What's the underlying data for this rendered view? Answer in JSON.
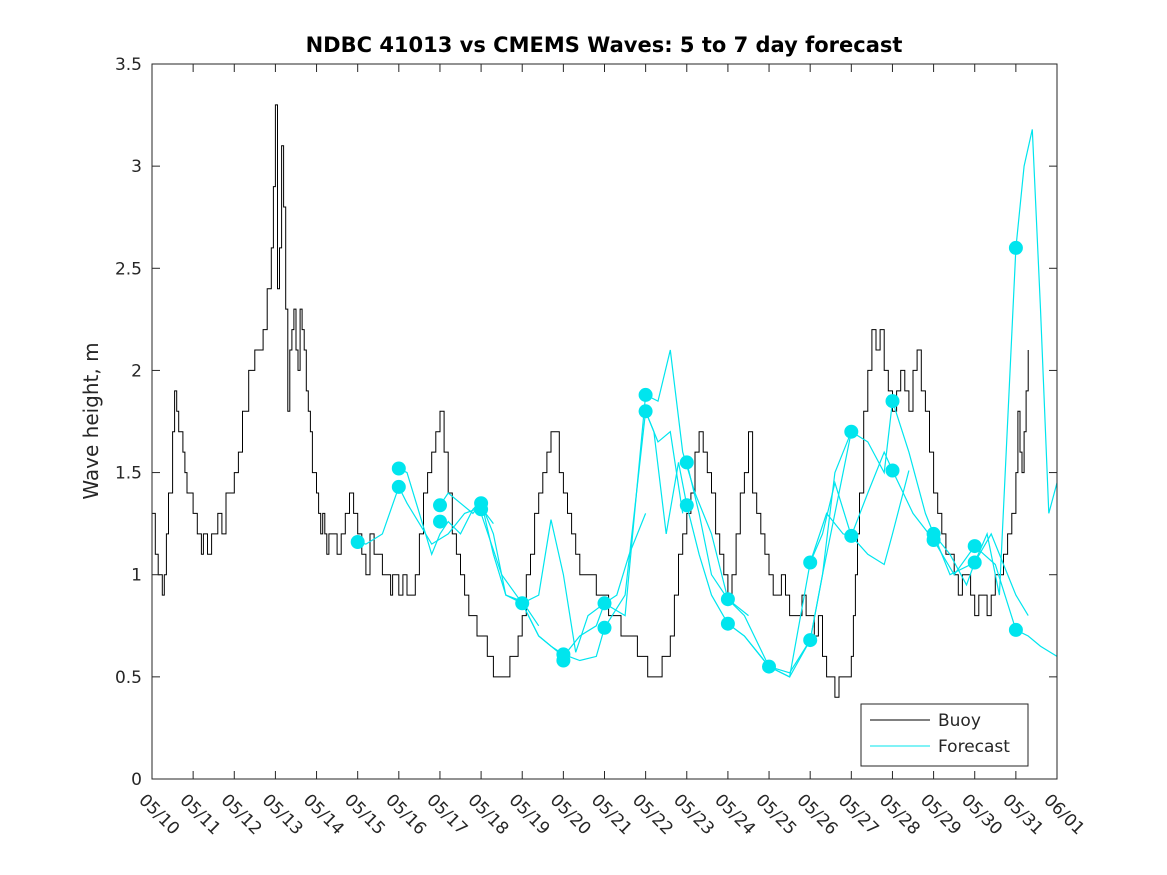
{
  "chart_data": {
    "type": "line",
    "title": "NDBC 41013 vs CMEMS Waves: 5 to 7 day forecast",
    "xlabel": "",
    "ylabel": "Wave height, m",
    "xlim": [
      0,
      22
    ],
    "ylim": [
      0,
      3.5
    ],
    "yticks": [
      0,
      0.5,
      1,
      1.5,
      2,
      2.5,
      3,
      3.5
    ],
    "ytick_labels": [
      "0",
      "0.5",
      "1",
      "1.5",
      "2",
      "2.5",
      "3",
      "3.5"
    ],
    "xtick_labels": [
      "05/10",
      "05/11",
      "05/12",
      "05/13",
      "05/14",
      "05/15",
      "05/16",
      "05/17",
      "05/18",
      "05/19",
      "05/20",
      "05/21",
      "05/22",
      "05/23",
      "05/24",
      "05/25",
      "05/26",
      "05/27",
      "05/28",
      "05/29",
      "05/30",
      "05/31",
      "06/01"
    ],
    "grid": false,
    "legend": {
      "position": "bottom-right",
      "entries": [
        "Buoy",
        "Forecast"
      ]
    },
    "colors": {
      "buoy": "#000000",
      "forecast": "#00e5ee",
      "axis": "#262626"
    },
    "series": [
      {
        "name": "Buoy",
        "style": "step",
        "x": [
          0,
          0.08,
          0.15,
          0.25,
          0.3,
          0.35,
          0.4,
          0.5,
          0.55,
          0.6,
          0.65,
          0.75,
          0.8,
          0.85,
          0.95,
          1.0,
          1.1,
          1.2,
          1.25,
          1.35,
          1.45,
          1.5,
          1.6,
          1.7,
          1.8,
          1.9,
          2.0,
          2.1,
          2.2,
          2.35,
          2.5,
          2.6,
          2.7,
          2.8,
          2.9,
          2.95,
          3.0,
          3.05,
          3.1,
          3.15,
          3.2,
          3.25,
          3.3,
          3.35,
          3.4,
          3.45,
          3.5,
          3.55,
          3.6,
          3.65,
          3.7,
          3.75,
          3.8,
          3.85,
          3.9,
          3.95,
          4.0,
          4.05,
          4.1,
          4.15,
          4.2,
          4.25,
          4.3,
          4.4,
          4.5,
          4.6,
          4.7,
          4.8,
          4.9,
          5.0,
          5.1,
          5.2,
          5.3,
          5.4,
          5.5,
          5.6,
          5.7,
          5.75,
          5.8,
          5.85,
          5.9,
          6.0,
          6.1,
          6.15,
          6.2,
          6.3,
          6.4,
          6.5,
          6.6,
          6.7,
          6.8,
          6.9,
          7.0,
          7.1,
          7.2,
          7.3,
          7.4,
          7.5,
          7.6,
          7.7,
          7.8,
          7.9,
          8.0,
          8.05,
          8.1,
          8.15,
          8.2,
          8.3,
          8.4,
          8.5,
          8.6,
          8.7,
          8.8,
          8.9,
          9.0,
          9.1,
          9.2,
          9.3,
          9.4,
          9.5,
          9.6,
          9.7,
          9.8,
          9.9,
          10.0,
          10.1,
          10.2,
          10.3,
          10.4,
          10.6,
          10.8,
          11.0,
          11.1,
          11.2,
          11.3,
          11.4,
          11.5,
          11.6,
          11.7,
          11.8,
          11.9,
          12.0,
          12.05,
          12.1,
          12.15,
          12.2,
          12.3,
          12.4,
          12.5,
          12.6,
          12.7,
          12.8,
          12.9,
          13.0,
          13.1,
          13.2,
          13.3,
          13.4,
          13.5,
          13.6,
          13.7,
          13.8,
          13.9,
          14.0,
          14.1,
          14.2,
          14.3,
          14.4,
          14.5,
          14.6,
          14.7,
          14.8,
          14.9,
          15.0,
          15.1,
          15.2,
          15.3,
          15.4,
          15.5,
          15.6,
          15.7,
          15.8,
          15.9,
          16.0,
          16.1,
          16.2,
          16.3,
          16.4,
          16.5,
          16.6,
          16.7,
          16.8,
          16.9,
          17.0,
          17.05,
          17.1,
          17.15,
          17.2,
          17.3,
          17.4,
          17.5,
          17.6,
          17.7,
          17.8,
          17.9,
          18.0,
          18.1,
          18.2,
          18.3,
          18.4,
          18.5,
          18.6,
          18.7,
          18.8,
          18.9,
          19.0,
          19.1,
          19.2,
          19.3,
          19.4,
          19.5,
          19.6,
          19.7,
          19.8,
          19.9,
          20.0,
          20.1,
          20.2,
          20.3,
          20.4,
          20.5,
          20.6,
          20.7,
          20.8,
          20.9,
          21.0,
          21.05,
          21.1,
          21.15,
          21.2,
          21.25,
          21.3
        ],
        "values": [
          1.3,
          1.1,
          1.0,
          0.9,
          1.0,
          1.2,
          1.4,
          1.7,
          1.9,
          1.8,
          1.7,
          1.6,
          1.5,
          1.4,
          1.4,
          1.3,
          1.2,
          1.1,
          1.2,
          1.1,
          1.2,
          1.2,
          1.3,
          1.2,
          1.4,
          1.4,
          1.5,
          1.6,
          1.8,
          2.0,
          2.1,
          2.1,
          2.2,
          2.4,
          2.6,
          2.9,
          3.3,
          2.4,
          2.6,
          3.1,
          2.8,
          2.3,
          1.8,
          2.1,
          2.2,
          2.3,
          2.1,
          2.0,
          2.3,
          2.2,
          2.1,
          1.9,
          1.8,
          1.7,
          1.5,
          1.5,
          1.4,
          1.3,
          1.2,
          1.3,
          1.2,
          1.1,
          1.2,
          1.2,
          1.1,
          1.2,
          1.3,
          1.4,
          1.3,
          1.2,
          1.1,
          1.0,
          1.2,
          1.1,
          1.1,
          1.0,
          1.0,
          1.0,
          0.9,
          1.0,
          1.0,
          0.9,
          1.0,
          1.0,
          0.9,
          0.9,
          1.0,
          1.2,
          1.4,
          1.5,
          1.6,
          1.7,
          1.8,
          1.6,
          1.4,
          1.2,
          1.1,
          1.0,
          0.9,
          0.8,
          0.8,
          0.7,
          0.7,
          0.7,
          0.7,
          0.6,
          0.6,
          0.5,
          0.5,
          0.5,
          0.5,
          0.6,
          0.6,
          0.7,
          0.8,
          1.0,
          1.1,
          1.3,
          1.4,
          1.5,
          1.6,
          1.7,
          1.7,
          1.5,
          1.4,
          1.3,
          1.2,
          1.1,
          1.0,
          1.0,
          0.9,
          0.9,
          0.8,
          0.8,
          0.8,
          0.7,
          0.7,
          0.7,
          0.7,
          0.6,
          0.6,
          0.6,
          0.5,
          0.5,
          0.5,
          0.5,
          0.5,
          0.6,
          0.6,
          0.7,
          0.9,
          1.1,
          1.2,
          1.3,
          1.4,
          1.6,
          1.7,
          1.6,
          1.5,
          1.4,
          1.2,
          1.1,
          1.0,
          0.9,
          1.0,
          1.2,
          1.4,
          1.5,
          1.7,
          1.4,
          1.3,
          1.2,
          1.1,
          1.0,
          0.9,
          0.9,
          1.0,
          0.9,
          0.8,
          0.8,
          0.8,
          0.9,
          0.8,
          0.8,
          0.7,
          0.8,
          0.6,
          0.5,
          0.5,
          0.4,
          0.5,
          0.5,
          0.5,
          0.6,
          0.8,
          1.0,
          1.2,
          1.4,
          1.8,
          2.0,
          2.2,
          2.1,
          2.2,
          2.0,
          1.9,
          1.8,
          1.9,
          2.0,
          1.9,
          1.8,
          2.0,
          2.1,
          1.9,
          1.8,
          1.6,
          1.4,
          1.3,
          1.2,
          1.1,
          1.1,
          1.0,
          0.9,
          1.0,
          1.0,
          0.9,
          0.8,
          0.9,
          0.9,
          0.8,
          0.9,
          1.0,
          1.0,
          1.1,
          1.2,
          1.3,
          1.5,
          1.8,
          1.6,
          1.5,
          1.7,
          1.9,
          2.1
        ]
      },
      {
        "name": "Forecast",
        "segments": [
          {
            "x": [
              5.0,
              5.2,
              5.6,
              6.0,
              6.2,
              6.5,
              6.8,
              7.2,
              7.6,
              8.0,
              8.3
            ],
            "y": [
              1.16,
              1.15,
              1.2,
              1.43,
              1.35,
              1.25,
              1.15,
              1.2,
              1.3,
              1.33,
              1.25
            ]
          },
          {
            "x": [
              6.0,
              6.2,
              6.5,
              6.8,
              7.0,
              7.2,
              7.5,
              7.8,
              8.0,
              8.3,
              8.6,
              9.0,
              9.4
            ],
            "y": [
              1.52,
              1.5,
              1.3,
              1.1,
              1.2,
              1.26,
              1.2,
              1.32,
              1.36,
              1.1,
              0.9,
              0.87,
              0.75
            ]
          },
          {
            "x": [
              7.0,
              7.2,
              7.5,
              7.8,
              8.0,
              8.3,
              8.6,
              9.0,
              9.4,
              10.0,
              10.4,
              10.8,
              11.0,
              11.3,
              11.6,
              12.0
            ],
            "y": [
              1.34,
              1.4,
              1.35,
              1.3,
              1.35,
              1.2,
              0.9,
              0.86,
              0.7,
              0.6,
              0.7,
              0.75,
              0.86,
              0.9,
              1.1,
              1.3
            ]
          },
          {
            "x": [
              8.0,
              8.5,
              9.0,
              9.4,
              9.7,
              10.0,
              10.4,
              10.8,
              11.0,
              11.5,
              12.0,
              12.3,
              12.6,
              12.9
            ],
            "y": [
              1.3,
              1.0,
              0.86,
              0.7,
              0.65,
              0.61,
              0.58,
              0.6,
              0.74,
              0.9,
              1.8,
              1.65,
              1.7,
              1.3
            ]
          },
          {
            "x": [
              9.0,
              9.4,
              9.7,
              10.0,
              10.3,
              10.6,
              11.0,
              11.5,
              12.0,
              12.3,
              12.6,
              12.9,
              13.2,
              13.6,
              14.0,
              14.5
            ],
            "y": [
              0.86,
              0.9,
              1.27,
              1.0,
              0.62,
              0.8,
              0.86,
              0.8,
              1.88,
              1.85,
              2.1,
              1.6,
              1.4,
              1.2,
              0.88,
              0.8
            ]
          },
          {
            "x": [
              12.0,
              12.2,
              12.5,
              12.8,
              13.0,
              13.3,
              13.6,
              14.0,
              14.4,
              15.0,
              15.5,
              16.0,
              16.3,
              16.6,
              17.0
            ],
            "y": [
              1.8,
              1.7,
              1.2,
              1.55,
              1.34,
              1.1,
              0.9,
              0.76,
              0.7,
              0.55,
              0.5,
              0.68,
              1.0,
              1.5,
              1.7
            ]
          },
          {
            "x": [
              13.0,
              13.3,
              13.6,
              14.0,
              14.4,
              15.0,
              15.5,
              16.0,
              16.3,
              16.6,
              17.0,
              17.4,
              17.8,
              18.0,
              18.4
            ],
            "y": [
              1.55,
              1.3,
              1.0,
              0.88,
              0.8,
              0.55,
              0.5,
              1.06,
              1.2,
              1.45,
              1.19,
              1.1,
              1.05,
              1.2,
              1.51
            ]
          },
          {
            "x": [
              14.0,
              14.4,
              15.0,
              15.5,
              16.0,
              16.3,
              16.6,
              17.0,
              17.4,
              17.8,
              18.0,
              18.4,
              18.8,
              19.0,
              19.4,
              20.0,
              20.4,
              21.0,
              21.3
            ],
            "y": [
              0.76,
              0.7,
              0.55,
              0.52,
              0.68,
              1.0,
              1.3,
              1.7,
              1.65,
              1.5,
              1.85,
              1.6,
              1.3,
              1.2,
              1.0,
              1.06,
              1.2,
              0.9,
              0.8
            ]
          },
          {
            "x": [
              16.0,
              16.4,
              16.8,
              17.0,
              17.4,
              17.8,
              18.0,
              18.5,
              19.0,
              19.5,
              20.0,
              20.5,
              21.0,
              21.3,
              21.6,
              22.0
            ],
            "y": [
              1.06,
              1.3,
              1.2,
              1.19,
              1.4,
              1.6,
              1.51,
              1.3,
              1.17,
              1.0,
              1.14,
              1.05,
              0.73,
              0.7,
              0.65,
              0.6
            ]
          },
          {
            "x": [
              19.0,
              19.4,
              19.8,
              20.0,
              20.3,
              20.6,
              21.0,
              21.2,
              21.4,
              21.6,
              21.8,
              22.0
            ],
            "y": [
              1.2,
              1.1,
              0.95,
              1.06,
              1.2,
              0.9,
              2.6,
              3.0,
              3.18,
              2.3,
              1.3,
              1.45
            ]
          }
        ],
        "markers": {
          "x": [
            5.0,
            6.0,
            6.0,
            7.0,
            7.0,
            8.0,
            8.0,
            9.0,
            10.0,
            10.0,
            11.0,
            11.0,
            12.0,
            12.0,
            13.0,
            13.0,
            14.0,
            14.0,
            15.0,
            16.0,
            16.0,
            17.0,
            17.0,
            18.0,
            18.0,
            19.0,
            19.0,
            20.0,
            20.0,
            21.0,
            21.0
          ],
          "y": [
            1.16,
            1.52,
            1.43,
            1.34,
            1.26,
            1.35,
            1.32,
            0.86,
            0.61,
            0.58,
            0.86,
            0.74,
            1.88,
            1.8,
            1.55,
            1.34,
            0.88,
            0.76,
            0.55,
            1.06,
            0.68,
            1.7,
            1.19,
            1.85,
            1.51,
            1.2,
            1.17,
            1.14,
            1.06,
            2.6,
            0.73
          ]
        }
      }
    ]
  }
}
